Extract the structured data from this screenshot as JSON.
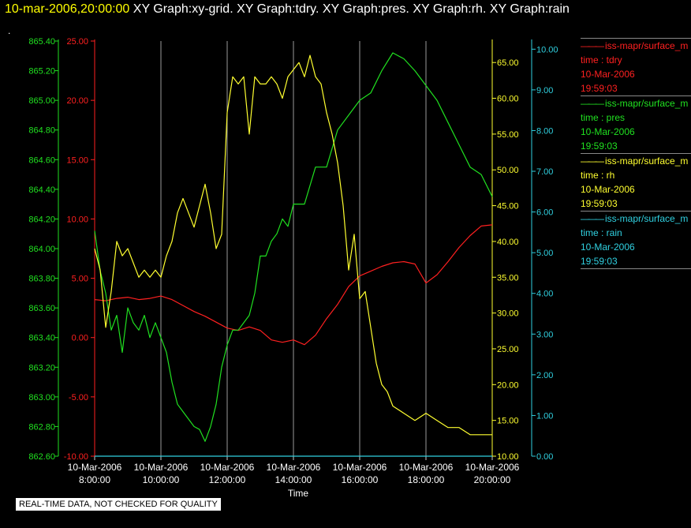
{
  "header": {
    "timestamp": "10-mar-2006,20:00:00",
    "graphs": "XY Graph:xy-grid.  XY Graph:tdry.  XY Graph:pres.  XY Graph:rh.  XY Graph:rain",
    "dot": "."
  },
  "legend": [
    {
      "label": "iss-mapr/surface_m",
      "line2": "time : tdry",
      "line3": "10-Mar-2006",
      "line4": "19:59:03",
      "color": "#ff2020"
    },
    {
      "label": "iss-mapr/surface_m",
      "line2": "time : pres",
      "line3": "10-Mar-2006",
      "line4": "19:59:03",
      "color": "#20e020"
    },
    {
      "label": "iss-mapr/surface_m",
      "line2": "time : rh",
      "line3": "10-Mar-2006",
      "line4": "19:59:03",
      "color": "#ffff30"
    },
    {
      "label": "iss-mapr/surface_m",
      "line2": "time : rain",
      "line3": "10-Mar-2006",
      "line4": "19:59:03",
      "color": "#30d0e0"
    }
  ],
  "notice": "REAL-TIME DATA, NOT CHECKED FOR QUALITY",
  "chart_data": {
    "type": "line",
    "xlabel": "Time",
    "x_ticks": [
      {
        "date": "10-Mar-2006",
        "time": "8:00:00"
      },
      {
        "date": "10-Mar-2006",
        "time": "10:00:00"
      },
      {
        "date": "10-Mar-2006",
        "time": "12:00:00"
      },
      {
        "date": "10-Mar-2006",
        "time": "14:00:00"
      },
      {
        "date": "10-Mar-2006",
        "time": "16:00:00"
      },
      {
        "date": "10-Mar-2006",
        "time": "18:00:00"
      },
      {
        "date": "10-Mar-2006",
        "time": "20:00:00"
      }
    ],
    "xlim": [
      "10-Mar-2006 8:00:00",
      "10-Mar-2006 20:00:00"
    ],
    "grid": "vertical",
    "axes": {
      "tdry": {
        "ylim": [
          -10,
          25
        ],
        "ticks": [
          "-10.00",
          "-5.00",
          "0.00",
          "5.00",
          "10.00",
          "15.00",
          "20.00",
          "25.00"
        ],
        "color": "#ff2020",
        "side": "left"
      },
      "pres": {
        "ylim": [
          862.6,
          865.4
        ],
        "ticks": [
          "862.60",
          "862.80",
          "863.00",
          "863.20",
          "863.40",
          "863.60",
          "863.80",
          "864.00",
          "864.20",
          "864.40",
          "864.60",
          "864.80",
          "865.00",
          "865.20",
          "865.40"
        ],
        "color": "#20e020",
        "side": "left"
      },
      "rh": {
        "ylim": [
          10,
          68
        ],
        "ticks": [
          "10.00",
          "15.00",
          "20.00",
          "25.00",
          "30.00",
          "35.00",
          "40.00",
          "45.00",
          "50.00",
          "55.00",
          "60.00",
          "65.00"
        ],
        "color": "#ffff30",
        "side": "right"
      },
      "rain": {
        "ylim": [
          0,
          10.2
        ],
        "ticks": [
          "0.00",
          "1.00",
          "2.00",
          "3.00",
          "4.00",
          "5.00",
          "6.00",
          "7.00",
          "8.00",
          "9.00",
          "10.00"
        ],
        "color": "#30d0e0",
        "side": "right"
      }
    },
    "series": [
      {
        "name": "time : tdry",
        "axis": "tdry",
        "color": "#ff2020",
        "x": [
          "08:00",
          "08:20",
          "08:40",
          "09:00",
          "09:20",
          "09:40",
          "10:00",
          "10:20",
          "10:40",
          "11:00",
          "11:20",
          "11:40",
          "12:00",
          "12:20",
          "12:40",
          "13:00",
          "13:20",
          "13:40",
          "14:00",
          "14:20",
          "14:40",
          "15:00",
          "15:20",
          "15:40",
          "16:00",
          "16:20",
          "16:40",
          "17:00",
          "17:20",
          "17:40",
          "18:00",
          "18:20",
          "18:40",
          "19:00",
          "19:20",
          "19:40",
          "20:00"
        ],
        "values": [
          3.2,
          3.1,
          3.3,
          3.4,
          3.2,
          3.3,
          3.5,
          3.2,
          2.7,
          2.2,
          1.8,
          1.3,
          0.8,
          0.6,
          0.9,
          0.6,
          -0.2,
          -0.4,
          -0.2,
          -0.6,
          0.2,
          1.6,
          2.8,
          4.3,
          5.2,
          5.6,
          6.0,
          6.3,
          6.4,
          6.2,
          4.6,
          5.3,
          6.4,
          7.6,
          8.6,
          9.4,
          9.5
        ]
      },
      {
        "name": "time : pres",
        "axis": "pres",
        "color": "#20e020",
        "x": [
          "08:00",
          "08:10",
          "08:20",
          "08:30",
          "08:40",
          "08:50",
          "09:00",
          "09:10",
          "09:20",
          "09:30",
          "09:40",
          "09:50",
          "10:00",
          "10:10",
          "10:20",
          "10:30",
          "10:40",
          "10:50",
          "11:00",
          "11:10",
          "11:20",
          "11:30",
          "11:40",
          "11:50",
          "12:00",
          "12:10",
          "12:20",
          "12:30",
          "12:40",
          "12:50",
          "13:00",
          "13:10",
          "13:20",
          "13:30",
          "13:40",
          "13:50",
          "14:00",
          "14:20",
          "14:40",
          "15:00",
          "15:20",
          "15:40",
          "16:00",
          "16:20",
          "16:40",
          "17:00",
          "17:20",
          "17:40",
          "18:00",
          "18:20",
          "18:40",
          "19:00",
          "19:20",
          "19:40",
          "20:00"
        ],
        "values": [
          864.12,
          863.85,
          863.7,
          863.45,
          863.55,
          863.3,
          863.6,
          863.5,
          863.45,
          863.55,
          863.4,
          863.5,
          863.4,
          863.3,
          863.1,
          862.95,
          862.9,
          862.85,
          862.8,
          862.78,
          862.7,
          862.8,
          862.95,
          863.2,
          863.35,
          863.45,
          863.45,
          863.5,
          863.55,
          863.7,
          863.95,
          863.95,
          864.05,
          864.1,
          864.2,
          864.15,
          864.3,
          864.3,
          864.55,
          864.55,
          864.8,
          864.9,
          865.0,
          865.05,
          865.2,
          865.32,
          865.28,
          865.2,
          865.1,
          865.0,
          864.85,
          864.7,
          864.55,
          864.5,
          864.35
        ]
      },
      {
        "name": "time : rh",
        "axis": "rh",
        "color": "#ffff30",
        "x": [
          "08:00",
          "08:10",
          "08:20",
          "08:30",
          "08:40",
          "08:50",
          "09:00",
          "09:10",
          "09:20",
          "09:30",
          "09:40",
          "09:50",
          "10:00",
          "10:10",
          "10:20",
          "10:30",
          "10:40",
          "10:50",
          "11:00",
          "11:10",
          "11:20",
          "11:30",
          "11:40",
          "11:50",
          "12:00",
          "12:10",
          "12:20",
          "12:30",
          "12:40",
          "12:50",
          "13:00",
          "13:10",
          "13:20",
          "13:30",
          "13:40",
          "13:50",
          "14:00",
          "14:10",
          "14:20",
          "14:30",
          "14:40",
          "14:50",
          "15:00",
          "15:10",
          "15:20",
          "15:30",
          "15:40",
          "15:50",
          "16:00",
          "16:10",
          "16:20",
          "16:30",
          "16:40",
          "16:50",
          "17:00",
          "17:20",
          "17:40",
          "18:00",
          "18:20",
          "18:40",
          "19:00",
          "19:20",
          "19:40",
          "20:00"
        ],
        "values": [
          39,
          36,
          28,
          33,
          40,
          38,
          39,
          37,
          35,
          36,
          35,
          36,
          35,
          38,
          40,
          44,
          46,
          44,
          42,
          45,
          48,
          44,
          39,
          41,
          58,
          63,
          62,
          63,
          55,
          63,
          62,
          62,
          63,
          62,
          60,
          63,
          64,
          65,
          63,
          66,
          63,
          62,
          58,
          55,
          51,
          45,
          36,
          41,
          32,
          33,
          28,
          23,
          20,
          19,
          17,
          16,
          15,
          16,
          15,
          14,
          14,
          13,
          13,
          13
        ]
      },
      {
        "name": "time : rain",
        "axis": "rain",
        "color": "#30d0e0",
        "x": [
          "08:00",
          "20:00"
        ],
        "values": [
          0.0,
          0.0
        ]
      }
    ]
  }
}
